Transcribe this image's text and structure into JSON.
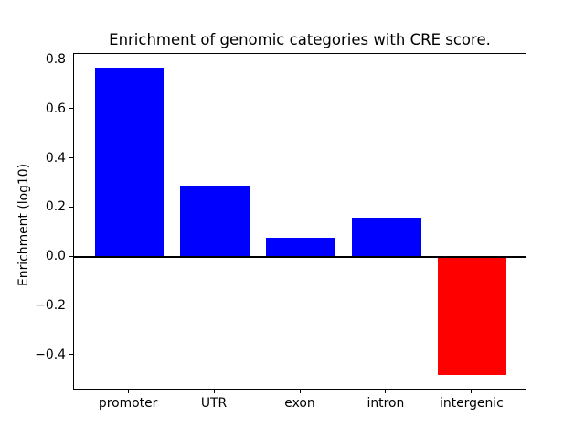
{
  "figure": {
    "background": "#ffffff"
  },
  "chart_data": {
    "type": "bar",
    "title": "Enrichment of genomic categories with CRE score.",
    "xlabel": "",
    "ylabel": "Enrichment (log10)",
    "categories": [
      "promoter",
      "UTR",
      "exon",
      "intron",
      "intergenic"
    ],
    "values": [
      0.77,
      0.29,
      0.08,
      0.16,
      -0.48
    ],
    "bar_colors": [
      "#0000ff",
      "#0000ff",
      "#0000ff",
      "#0000ff",
      "#ff0000"
    ],
    "positive_color": "#0000ff",
    "negative_color": "#ff0000",
    "ylim": [
      -0.543,
      0.826
    ],
    "yticks": [
      0.8,
      0.6,
      0.4,
      0.2,
      0.0,
      -0.2,
      -0.4
    ],
    "ytick_labels": [
      "0.8",
      "0.6",
      "0.4",
      "0.2",
      "0.0",
      "−0.2",
      "−0.4"
    ],
    "bar_width_frac": 0.8,
    "grid": false,
    "legend": null,
    "zero_line": true,
    "axis_color": "#000000"
  }
}
